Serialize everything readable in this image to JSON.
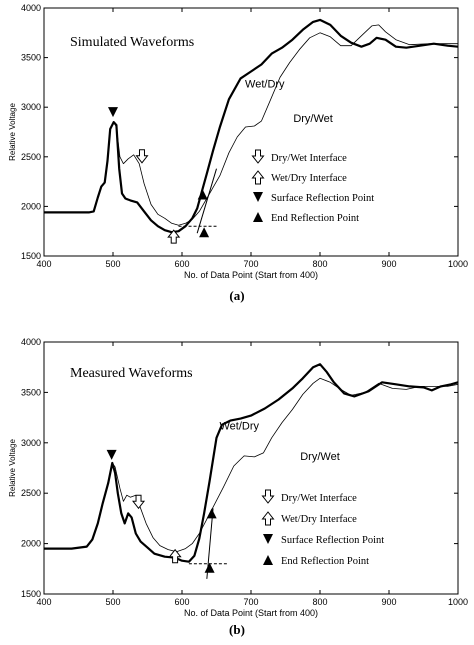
{
  "chart_data": [
    {
      "type": "line",
      "panel_label": "(a)",
      "title": "Simulated Waveforms",
      "xlabel": "No. of Data Point (Start from 400)",
      "ylabel": "Relative Voltage",
      "xlim": [
        400,
        1000
      ],
      "ylim": [
        1500,
        4000
      ],
      "xticks": [
        400,
        500,
        600,
        700,
        800,
        900,
        1000
      ],
      "yticks": [
        1500,
        2000,
        2500,
        3000,
        3500,
        4000
      ],
      "grid": false,
      "series": [
        {
          "name": "Wet/Dry",
          "style": "thick",
          "points": [
            [
              400,
              1940
            ],
            [
              465,
              1940
            ],
            [
              472,
              1950
            ],
            [
              478,
              2090
            ],
            [
              483,
              2200
            ],
            [
              488,
              2240
            ],
            [
              492,
              2460
            ],
            [
              496,
              2780
            ],
            [
              501,
              2850
            ],
            [
              505,
              2820
            ],
            [
              509,
              2380
            ],
            [
              513,
              2130
            ],
            [
              518,
              2080
            ],
            [
              525,
              2060
            ],
            [
              535,
              2040
            ],
            [
              545,
              1950
            ],
            [
              555,
              1860
            ],
            [
              565,
              1800
            ],
            [
              575,
              1760
            ],
            [
              585,
              1740
            ],
            [
              595,
              1750
            ],
            [
              605,
              1800
            ],
            [
              615,
              1880
            ],
            [
              622,
              1980
            ],
            [
              628,
              2130
            ],
            [
              636,
              2330
            ],
            [
              645,
              2560
            ],
            [
              655,
              2800
            ],
            [
              668,
              3080
            ],
            [
              685,
              3290
            ],
            [
              700,
              3360
            ],
            [
              715,
              3430
            ],
            [
              730,
              3540
            ],
            [
              745,
              3600
            ],
            [
              760,
              3680
            ],
            [
              775,
              3780
            ],
            [
              790,
              3860
            ],
            [
              800,
              3880
            ],
            [
              815,
              3830
            ],
            [
              830,
              3720
            ],
            [
              845,
              3650
            ],
            [
              860,
              3610
            ],
            [
              872,
              3640
            ],
            [
              882,
              3700
            ],
            [
              895,
              3680
            ],
            [
              910,
              3610
            ],
            [
              925,
              3600
            ],
            [
              945,
              3620
            ],
            [
              965,
              3640
            ],
            [
              985,
              3620
            ],
            [
              1000,
              3610
            ]
          ]
        },
        {
          "name": "Dry/Wet",
          "style": "thin",
          "points": [
            [
              400,
              1940
            ],
            [
              465,
              1940
            ],
            [
              472,
              1950
            ],
            [
              478,
              2090
            ],
            [
              483,
              2200
            ],
            [
              488,
              2240
            ],
            [
              492,
              2460
            ],
            [
              496,
              2780
            ],
            [
              501,
              2850
            ],
            [
              505,
              2800
            ],
            [
              510,
              2500
            ],
            [
              515,
              2430
            ],
            [
              522,
              2480
            ],
            [
              530,
              2520
            ],
            [
              538,
              2430
            ],
            [
              545,
              2230
            ],
            [
              555,
              2020
            ],
            [
              565,
              1920
            ],
            [
              575,
              1880
            ],
            [
              585,
              1830
            ],
            [
              595,
              1810
            ],
            [
              605,
              1830
            ],
            [
              615,
              1870
            ],
            [
              625,
              1950
            ],
            [
              635,
              2070
            ],
            [
              645,
              2190
            ],
            [
              655,
              2310
            ],
            [
              668,
              2540
            ],
            [
              680,
              2700
            ],
            [
              692,
              2800
            ],
            [
              705,
              2810
            ],
            [
              715,
              2860
            ],
            [
              728,
              3070
            ],
            [
              742,
              3300
            ],
            [
              756,
              3450
            ],
            [
              770,
              3580
            ],
            [
              785,
              3700
            ],
            [
              800,
              3750
            ],
            [
              815,
              3710
            ],
            [
              830,
              3620
            ],
            [
              845,
              3620
            ],
            [
              860,
              3720
            ],
            [
              875,
              3820
            ],
            [
              885,
              3830
            ],
            [
              895,
              3760
            ],
            [
              910,
              3680
            ],
            [
              930,
              3630
            ],
            [
              960,
              3640
            ],
            [
              1000,
              3640
            ]
          ]
        }
      ],
      "annotations": [
        {
          "text": "Wet/Dry",
          "x": 720,
          "y": 3200
        },
        {
          "text": "Dry/Wet",
          "x": 790,
          "y": 2850
        }
      ],
      "markers": [
        {
          "kind": "surface_reflection",
          "x": 500,
          "y": 2950
        },
        {
          "kind": "dry_wet_interface",
          "x": 542,
          "y": 2500
        },
        {
          "kind": "wet_dry_interface",
          "x": 588,
          "y": 1700
        },
        {
          "kind": "end_reflection",
          "x": 630,
          "y": 2120
        },
        {
          "kind": "end_reflection",
          "x": 632,
          "y": 1740
        }
      ],
      "reference_lines": [
        {
          "style": "dashed",
          "from": [
            595,
            1800
          ],
          "to": [
            650,
            1800
          ]
        },
        {
          "style": "solid",
          "from": [
            622,
            1730
          ],
          "to": [
            650,
            2380
          ]
        }
      ],
      "legend": {
        "placement": "center-right",
        "entries": [
          {
            "symbol": "hollow-down-arrow",
            "label": "Dry/Wet Interface"
          },
          {
            "symbol": "hollow-up-arrow",
            "label": "Wet/Dry Interface"
          },
          {
            "symbol": "filled-down-triangle",
            "label": "Surface Reflection Point"
          },
          {
            "symbol": "filled-up-triangle",
            "label": "End Reflection Point"
          }
        ]
      }
    },
    {
      "type": "line",
      "panel_label": "(b)",
      "title": "Measured Waveforms",
      "xlabel": "No. of Data Point (Start from 400)",
      "ylabel": "Relative Voltage",
      "xlim": [
        400,
        1000
      ],
      "ylim": [
        1500,
        4000
      ],
      "xticks": [
        400,
        500,
        600,
        700,
        800,
        900,
        1000
      ],
      "yticks": [
        1500,
        2000,
        2500,
        3000,
        3500,
        4000
      ],
      "grid": false,
      "series": [
        {
          "name": "Wet/Dry",
          "style": "thick",
          "points": [
            [
              400,
              1950
            ],
            [
              440,
              1950
            ],
            [
              462,
              1970
            ],
            [
              470,
              2040
            ],
            [
              478,
              2200
            ],
            [
              485,
              2400
            ],
            [
              493,
              2600
            ],
            [
              499,
              2800
            ],
            [
              503,
              2700
            ],
            [
              507,
              2500
            ],
            [
              512,
              2300
            ],
            [
              517,
              2200
            ],
            [
              522,
              2300
            ],
            [
              527,
              2260
            ],
            [
              533,
              2100
            ],
            [
              540,
              2020
            ],
            [
              550,
              1960
            ],
            [
              560,
              1900
            ],
            [
              575,
              1870
            ],
            [
              590,
              1860
            ],
            [
              600,
              1830
            ],
            [
              610,
              1820
            ],
            [
              618,
              1880
            ],
            [
              625,
              2050
            ],
            [
              632,
              2300
            ],
            [
              640,
              2620
            ],
            [
              650,
              3050
            ],
            [
              658,
              3180
            ],
            [
              670,
              3220
            ],
            [
              685,
              3240
            ],
            [
              700,
              3270
            ],
            [
              720,
              3340
            ],
            [
              740,
              3430
            ],
            [
              760,
              3540
            ],
            [
              775,
              3640
            ],
            [
              790,
              3750
            ],
            [
              800,
              3780
            ],
            [
              810,
              3700
            ],
            [
              820,
              3600
            ],
            [
              835,
              3490
            ],
            [
              850,
              3460
            ],
            [
              870,
              3510
            ],
            [
              890,
              3600
            ],
            [
              910,
              3580
            ],
            [
              930,
              3560
            ],
            [
              950,
              3550
            ],
            [
              962,
              3520
            ],
            [
              975,
              3560
            ],
            [
              990,
              3580
            ],
            [
              1000,
              3600
            ]
          ]
        },
        {
          "name": "Dry/Wet",
          "style": "thin",
          "points": [
            [
              400,
              1950
            ],
            [
              440,
              1950
            ],
            [
              462,
              1970
            ],
            [
              470,
              2040
            ],
            [
              478,
              2200
            ],
            [
              485,
              2400
            ],
            [
              493,
              2600
            ],
            [
              499,
              2800
            ],
            [
              503,
              2760
            ],
            [
              510,
              2550
            ],
            [
              515,
              2420
            ],
            [
              520,
              2480
            ],
            [
              525,
              2460
            ],
            [
              533,
              2480
            ],
            [
              540,
              2350
            ],
            [
              548,
              2200
            ],
            [
              558,
              2060
            ],
            [
              568,
              1980
            ],
            [
              580,
              1940
            ],
            [
              592,
              1920
            ],
            [
              605,
              1950
            ],
            [
              615,
              2000
            ],
            [
              625,
              2100
            ],
            [
              635,
              2230
            ],
            [
              645,
              2360
            ],
            [
              660,
              2560
            ],
            [
              675,
              2770
            ],
            [
              690,
              2870
            ],
            [
              705,
              2860
            ],
            [
              718,
              2900
            ],
            [
              730,
              3050
            ],
            [
              745,
              3200
            ],
            [
              760,
              3330
            ],
            [
              775,
              3480
            ],
            [
              790,
              3590
            ],
            [
              800,
              3640
            ],
            [
              815,
              3600
            ],
            [
              830,
              3530
            ],
            [
              845,
              3470
            ],
            [
              865,
              3500
            ],
            [
              885,
              3590
            ],
            [
              905,
              3540
            ],
            [
              925,
              3530
            ],
            [
              945,
              3560
            ],
            [
              965,
              3560
            ],
            [
              985,
              3560
            ],
            [
              1000,
              3580
            ]
          ]
        }
      ],
      "annotations": [
        {
          "text": "Wet/Dry",
          "x": 683,
          "y": 3130
        },
        {
          "text": "Dry/Wet",
          "x": 800,
          "y": 2830
        }
      ],
      "markers": [
        {
          "kind": "surface_reflection",
          "x": 498,
          "y": 2880
        },
        {
          "kind": "dry_wet_interface",
          "x": 537,
          "y": 2410
        },
        {
          "kind": "wet_dry_interface",
          "x": 590,
          "y": 1880
        },
        {
          "kind": "end_reflection",
          "x": 643,
          "y": 2300
        },
        {
          "kind": "end_reflection",
          "x": 640,
          "y": 1760
        }
      ],
      "reference_lines": [
        {
          "style": "dashed",
          "from": [
            610,
            1800
          ],
          "to": [
            665,
            1800
          ]
        },
        {
          "style": "solid",
          "from": [
            636,
            1650
          ],
          "to": [
            645,
            2350
          ]
        }
      ],
      "legend": {
        "placement": "center-right",
        "entries": [
          {
            "symbol": "hollow-down-arrow",
            "label": "Dry/Wet Interface"
          },
          {
            "symbol": "hollow-up-arrow",
            "label": "Wet/Dry Interface"
          },
          {
            "symbol": "filled-down-triangle",
            "label": "Surface Reflection Point"
          },
          {
            "symbol": "filled-up-triangle",
            "label": "End Reflection Point"
          }
        ]
      }
    }
  ]
}
